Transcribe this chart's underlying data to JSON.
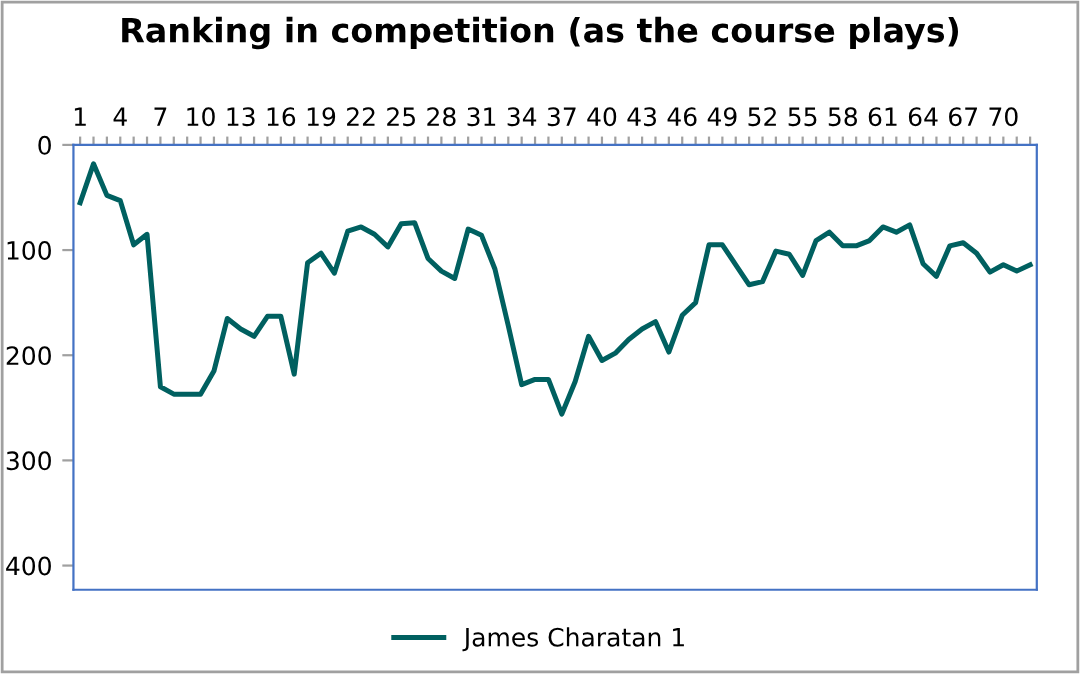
{
  "chart_data": {
    "type": "line",
    "title": "Ranking in competition (as the course plays)",
    "categories": [
      "1",
      null,
      null,
      "4",
      null,
      null,
      "7",
      null,
      null,
      "10",
      null,
      null,
      "13",
      null,
      null,
      "16",
      null,
      null,
      "19",
      null,
      null,
      "22",
      null,
      null,
      "25",
      null,
      null,
      "28",
      null,
      null,
      "31",
      null,
      null,
      "34",
      null,
      null,
      "37",
      null,
      null,
      "40",
      null,
      null,
      "43",
      null,
      null,
      "46",
      null,
      null,
      "49",
      null,
      null,
      "52",
      null,
      null,
      "55",
      null,
      null,
      "58",
      null,
      null,
      "61",
      null,
      null,
      "64",
      null,
      null,
      "67",
      null,
      null,
      "70",
      null,
      null
    ],
    "series": [
      {
        "name": "James Charatan 1",
        "color": "#006060",
        "values": [
          55,
          18,
          48,
          53,
          95,
          85,
          230,
          237,
          237,
          237,
          215,
          165,
          175,
          182,
          163,
          163,
          218,
          112,
          103,
          122,
          82,
          78,
          85,
          97,
          75,
          74,
          108,
          120,
          127,
          80,
          86,
          118,
          172,
          228,
          223,
          223,
          256,
          225,
          182,
          205,
          198,
          185,
          175,
          168,
          197,
          162,
          150,
          95,
          95,
          114,
          133,
          130,
          101,
          104,
          124,
          91,
          83,
          96,
          96,
          91,
          78,
          83,
          76,
          113,
          125,
          96,
          93,
          103,
          121,
          114,
          120,
          114
        ]
      }
    ],
    "ylim": [
      423,
      0
    ],
    "yticks": [
      0,
      100,
      200,
      300,
      400
    ],
    "grid": false,
    "legend": "bottom",
    "marker": "none",
    "line_style": "solid"
  }
}
